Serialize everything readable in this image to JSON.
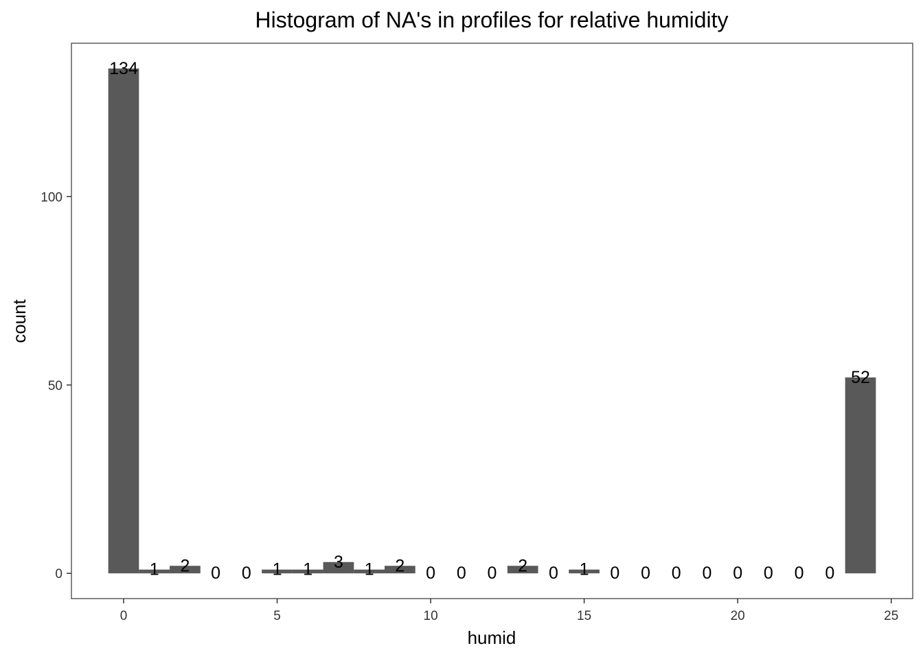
{
  "chart_data": {
    "type": "bar",
    "title": "Histogram of NA's in profiles for relative humidity",
    "xlabel": "humid",
    "ylabel": "count",
    "x": [
      0,
      1,
      2,
      3,
      4,
      5,
      6,
      7,
      8,
      9,
      10,
      11,
      12,
      13,
      14,
      15,
      16,
      17,
      18,
      19,
      20,
      21,
      22,
      23,
      24
    ],
    "values": [
      134,
      1,
      2,
      0,
      0,
      1,
      1,
      3,
      1,
      2,
      0,
      0,
      0,
      2,
      0,
      1,
      0,
      0,
      0,
      0,
      0,
      0,
      0,
      0,
      52
    ],
    "xlim": [
      -1.7,
      25.7
    ],
    "ylim": [
      -6.7,
      140.7
    ],
    "x_ticks": [
      0,
      5,
      10,
      15,
      20,
      25
    ],
    "y_ticks": [
      0,
      50,
      100
    ],
    "grid": false,
    "legend": "none",
    "colors": {
      "bar": "#595959",
      "panel_border": "#333333",
      "background": "#ffffff"
    }
  }
}
